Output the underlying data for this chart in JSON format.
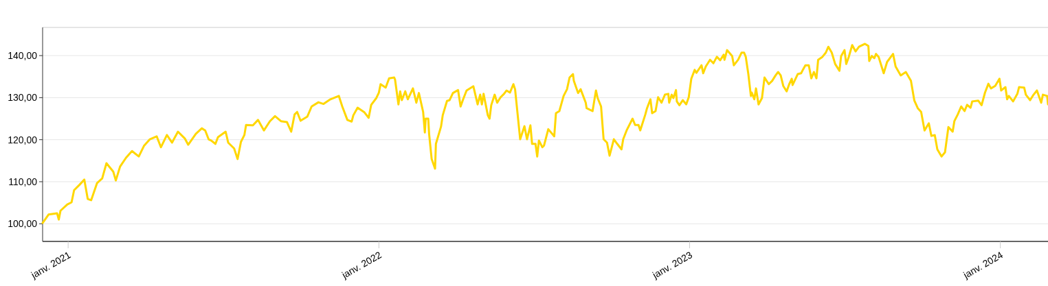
{
  "chart_data": {
    "type": "line",
    "x": [
      "2020-12-02",
      "2020-12-09",
      "2020-12-19",
      "2020-12-21",
      "2020-12-23",
      "2020-12-31",
      "2021-01-05",
      "2021-01-08",
      "2021-01-14",
      "2021-01-20",
      "2021-01-24",
      "2021-01-28",
      "2021-02-04",
      "2021-02-10",
      "2021-02-15",
      "2021-02-23",
      "2021-02-26",
      "2021-03-03",
      "2021-03-10",
      "2021-03-17",
      "2021-03-25",
      "2021-03-31",
      "2021-04-07",
      "2021-04-15",
      "2021-04-20",
      "2021-04-27",
      "2021-05-03",
      "2021-05-10",
      "2021-05-18",
      "2021-05-22",
      "2021-05-31",
      "2021-06-07",
      "2021-06-11",
      "2021-06-15",
      "2021-06-18",
      "2021-06-23",
      "2021-06-26",
      "2021-07-05",
      "2021-07-08",
      "2021-07-15",
      "2021-07-19",
      "2021-07-23",
      "2021-07-27",
      "2021-07-29",
      "2021-08-06",
      "2021-08-12",
      "2021-08-19",
      "2021-08-26",
      "2021-09-01",
      "2021-09-08",
      "2021-09-15",
      "2021-09-20",
      "2021-09-24",
      "2021-09-27",
      "2021-10-01",
      "2021-10-09",
      "2021-10-14",
      "2021-10-22",
      "2021-10-28",
      "2021-11-05",
      "2021-11-15",
      "2021-11-19",
      "2021-11-25",
      "2021-11-30",
      "2021-12-02",
      "2021-12-07",
      "2021-12-15",
      "2021-12-20",
      "2021-12-23",
      "2021-12-29",
      "2022-01-01",
      "2022-01-03",
      "2022-01-09",
      "2022-01-13",
      "2022-01-19",
      "2022-01-20",
      "2022-01-24",
      "2022-01-26",
      "2022-01-28",
      "2022-02-01",
      "2022-02-04",
      "2022-02-10",
      "2022-02-14",
      "2022-02-17",
      "2022-02-22",
      "2022-02-24",
      "2022-02-25",
      "2022-02-28",
      "2022-03-01",
      "2022-03-04",
      "2022-03-08",
      "2022-03-09",
      "2022-03-15",
      "2022-03-17",
      "2022-03-22",
      "2022-03-25",
      "2022-03-29",
      "2022-04-04",
      "2022-04-07",
      "2022-04-10",
      "2022-04-14",
      "2022-04-22",
      "2022-04-27",
      "2022-04-30",
      "2022-05-02",
      "2022-05-04",
      "2022-05-09",
      "2022-05-11",
      "2022-05-13",
      "2022-05-17",
      "2022-05-20",
      "2022-05-24",
      "2022-05-28",
      "2022-05-31",
      "2022-06-04",
      "2022-06-08",
      "2022-06-10",
      "2022-06-13",
      "2022-06-16",
      "2022-06-21",
      "2022-06-24",
      "2022-06-28",
      "2022-06-30",
      "2022-07-04",
      "2022-07-06",
      "2022-07-08",
      "2022-07-12",
      "2022-07-14",
      "2022-07-19",
      "2022-07-26",
      "2022-07-28",
      "2022-08-01",
      "2022-08-06",
      "2022-08-10",
      "2022-08-13",
      "2022-08-17",
      "2022-08-18",
      "2022-08-23",
      "2022-08-26",
      "2022-09-01",
      "2022-09-02",
      "2022-09-09",
      "2022-09-13",
      "2022-09-15",
      "2022-09-19",
      "2022-09-22",
      "2022-09-26",
      "2022-09-29",
      "2022-10-04",
      "2022-10-08",
      "2022-10-13",
      "2022-10-15",
      "2022-10-19",
      "2022-10-26",
      "2022-10-29",
      "2022-11-02",
      "2022-11-04",
      "2022-11-10",
      "2022-11-12",
      "2022-11-16",
      "2022-11-18",
      "2022-11-22",
      "2022-11-25",
      "2022-11-29",
      "2022-12-03",
      "2022-12-07",
      "2022-12-08",
      "2022-12-11",
      "2022-12-13",
      "2022-12-16",
      "2022-12-17",
      "2022-12-20",
      "2022-12-24",
      "2022-12-28",
      "2022-12-31",
      "2023-01-03",
      "2023-01-07",
      "2023-01-09",
      "2023-01-15",
      "2023-01-17",
      "2023-01-20",
      "2023-01-25",
      "2023-01-29",
      "2023-02-02",
      "2023-02-06",
      "2023-02-10",
      "2023-02-11",
      "2023-02-14",
      "2023-02-20",
      "2023-02-22",
      "2023-02-27",
      "2023-03-03",
      "2023-03-06",
      "2023-03-08",
      "2023-03-11",
      "2023-03-14",
      "2023-03-15",
      "2023-03-18",
      "2023-03-20",
      "2023-03-23",
      "2023-03-27",
      "2023-03-30",
      "2023-04-04",
      "2023-04-08",
      "2023-04-12",
      "2023-04-15",
      "2023-04-18",
      "2023-04-21",
      "2023-04-25",
      "2023-04-28",
      "2023-05-01",
      "2023-05-02",
      "2023-05-08",
      "2023-05-12",
      "2023-05-14",
      "2023-05-17",
      "2023-05-21",
      "2023-05-24",
      "2023-05-27",
      "2023-05-30",
      "2023-06-01",
      "2023-06-06",
      "2023-06-10",
      "2023-06-13",
      "2023-06-17",
      "2023-06-21",
      "2023-06-26",
      "2023-06-28",
      "2023-07-02",
      "2023-07-04",
      "2023-07-07",
      "2023-07-11",
      "2023-07-15",
      "2023-07-19",
      "2023-07-26",
      "2023-07-30",
      "2023-07-31",
      "2023-08-03",
      "2023-08-06",
      "2023-08-08",
      "2023-08-11",
      "2023-08-17",
      "2023-08-21",
      "2023-08-28",
      "2023-08-31",
      "2023-09-06",
      "2023-09-12",
      "2023-09-18",
      "2023-09-22",
      "2023-09-26",
      "2023-09-30",
      "2023-10-04",
      "2023-10-09",
      "2023-10-12",
      "2023-10-16",
      "2023-10-19",
      "2023-10-24",
      "2023-10-28",
      "2023-11-01",
      "2023-11-06",
      "2023-11-08",
      "2023-11-12",
      "2023-11-16",
      "2023-11-20",
      "2023-11-23",
      "2023-11-27",
      "2023-11-29",
      "2023-12-06",
      "2023-12-10",
      "2023-12-14",
      "2023-12-18",
      "2023-12-21",
      "2023-12-26",
      "2023-12-31",
      "2024-01-02",
      "2024-01-07",
      "2024-01-09",
      "2024-01-11",
      "2024-01-16",
      "2024-01-21",
      "2024-01-23",
      "2024-01-29",
      "2024-01-31",
      "2024-02-05",
      "2024-02-09",
      "2024-02-13",
      "2024-02-18",
      "2024-02-20",
      "2024-02-25",
      "2024-02-26"
    ],
    "series": [
      {
        "color": "#ffd700",
        "values": [
          100.2,
          102.2,
          102.5,
          101.0,
          103.1,
          104.6,
          105.1,
          108.0,
          109.2,
          110.5,
          105.9,
          105.6,
          109.7,
          110.8,
          114.4,
          112.4,
          110.3,
          113.6,
          115.7,
          117.3,
          116.0,
          118.5,
          120.1,
          120.8,
          118.2,
          121.1,
          119.3,
          121.9,
          120.3,
          118.8,
          121.4,
          122.7,
          122.2,
          120.1,
          119.8,
          119.0,
          120.6,
          121.9,
          119.3,
          117.9,
          115.4,
          119.5,
          121.1,
          123.5,
          123.4,
          124.7,
          122.2,
          124.4,
          125.6,
          124.4,
          124.2,
          121.9,
          126.0,
          126.6,
          124.5,
          125.5,
          127.9,
          128.9,
          128.5,
          129.6,
          130.4,
          127.9,
          124.7,
          124.3,
          125.8,
          127.6,
          126.5,
          125.2,
          128.3,
          129.9,
          131.2,
          133.2,
          132.4,
          134.6,
          134.8,
          134.3,
          128.4,
          131.5,
          129.4,
          131.5,
          129.6,
          132.2,
          128.8,
          131.1,
          126.6,
          121.7,
          125.0,
          125.0,
          121.4,
          115.4,
          113.1,
          119.0,
          123.1,
          125.8,
          129.2,
          129.4,
          131.1,
          131.8,
          127.9,
          129.6,
          131.7,
          132.7,
          128.4,
          130.7,
          128.4,
          130.9,
          125.8,
          125.0,
          128.2,
          130.7,
          128.8,
          130.1,
          130.9,
          131.7,
          131.2,
          133.2,
          132.0,
          126.0,
          120.1,
          123.2,
          120.1,
          123.4,
          119.0,
          119.0,
          116.0,
          119.8,
          118.2,
          118.6,
          122.5,
          120.8,
          126.3,
          126.8,
          130.4,
          132.0,
          134.8,
          135.6,
          134.0,
          131.1,
          132.0,
          128.8,
          127.5,
          126.8,
          131.7,
          129.9,
          127.9,
          120.1,
          119.3,
          116.2,
          120.1,
          119.0,
          117.7,
          120.1,
          122.2,
          125.0,
          123.5,
          123.5,
          122.2,
          126.0,
          127.5,
          129.6,
          126.3,
          126.8,
          130.1,
          128.8,
          130.7,
          130.9,
          128.8,
          130.7,
          129.9,
          131.8,
          129.1,
          128.2,
          129.4,
          128.4,
          130.1,
          134.5,
          136.6,
          135.9,
          137.7,
          135.8,
          137.4,
          139.0,
          138.2,
          139.7,
          138.9,
          140.2,
          139.0,
          141.3,
          139.9,
          137.7,
          139.0,
          140.7,
          140.7,
          139.7,
          135.6,
          130.4,
          131.2,
          129.6,
          132.2,
          128.4,
          129.9,
          134.8,
          133.2,
          134.0,
          135.3,
          136.1,
          135.3,
          132.8,
          131.5,
          133.2,
          134.5,
          133.0,
          135.6,
          135.8,
          136.6,
          137.7,
          137.7,
          134.6,
          136.1,
          134.6,
          139.0,
          139.7,
          140.7,
          142.1,
          140.7,
          138.0,
          136.4,
          139.9,
          141.3,
          138.0,
          139.7,
          142.5,
          141.0,
          142.1,
          142.8,
          142.3,
          138.7,
          139.9,
          139.4,
          140.4,
          139.7,
          135.8,
          138.5,
          140.4,
          137.4,
          135.3,
          136.1,
          134.0,
          129.3,
          127.5,
          126.6,
          122.2,
          123.9,
          120.9,
          121.1,
          117.7,
          116.0,
          117.0,
          123.0,
          121.9,
          124.4,
          126.0,
          127.9,
          126.8,
          128.3,
          127.6,
          129.1,
          129.3,
          128.2,
          131.2,
          133.3,
          132.2,
          132.8,
          134.5,
          131.7,
          132.5,
          129.6,
          130.4,
          129.1,
          130.9,
          132.5,
          132.4,
          130.7,
          129.4,
          130.7,
          131.7,
          128.8,
          130.7,
          130.4,
          128.4
        ]
      }
    ],
    "xlim": [
      "2020-12-02",
      "2024-02-26"
    ],
    "xticks": [
      {
        "value": "2021-01-01",
        "label": "janv. 2021"
      },
      {
        "value": "2022-01-01",
        "label": "janv. 2022"
      },
      {
        "value": "2023-01-01",
        "label": "janv. 2023"
      },
      {
        "value": "2024-01-01",
        "label": "janv. 2024"
      }
    ],
    "ylim": [
      95.8,
      146.7
    ],
    "yticks": [
      {
        "value": 100,
        "label": "100,00"
      },
      {
        "value": 110,
        "label": "110,00"
      },
      {
        "value": 120,
        "label": "120,00"
      },
      {
        "value": 130,
        "label": "130,00"
      },
      {
        "value": 140,
        "label": "140,00"
      }
    ],
    "grid": "y",
    "line_style": "solid",
    "marker": "none"
  }
}
